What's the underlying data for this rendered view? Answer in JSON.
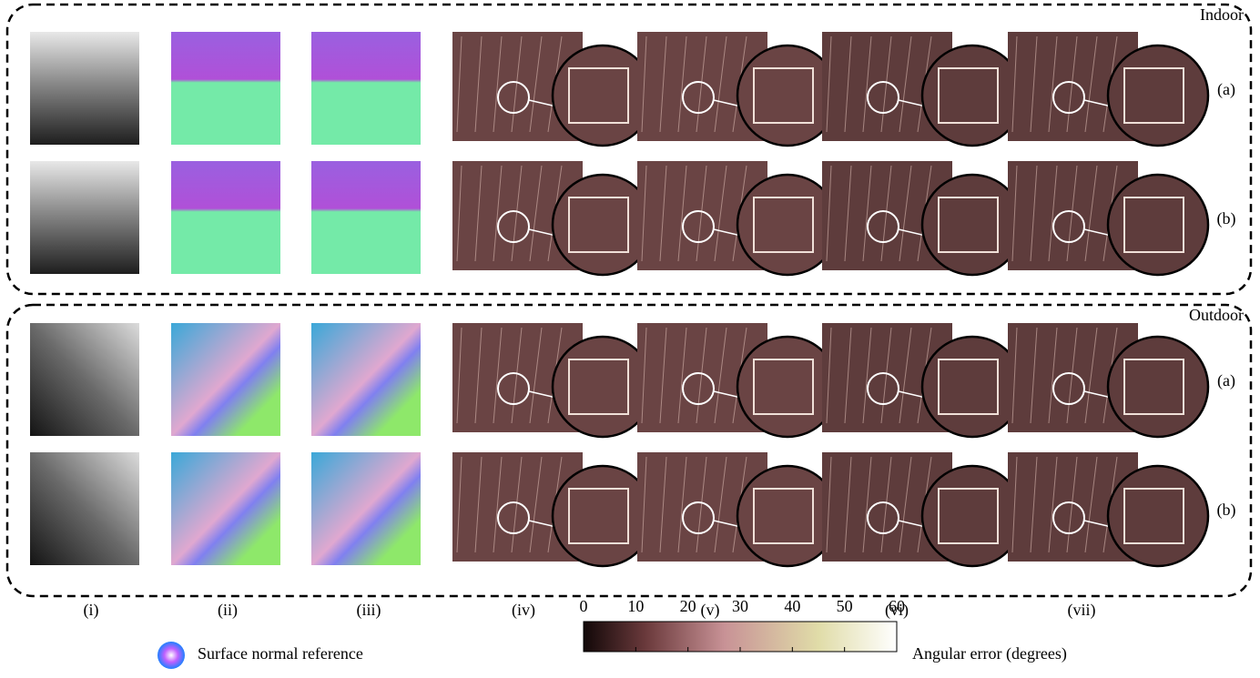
{
  "sections": [
    {
      "label": "Indoor",
      "rows": [
        "(a)",
        "(b)"
      ]
    },
    {
      "label": "Outdoor",
      "rows": [
        "(a)",
        "(b)"
      ]
    }
  ],
  "columns": [
    "(i)",
    "(ii)",
    "(iii)",
    "(iv)",
    "(v)",
    "(vi)",
    "(vii)"
  ],
  "legend": {
    "normal_reference": "Surface normal reference"
  },
  "colorbar": {
    "lim": [
      0,
      60
    ],
    "ticks": [
      0,
      10,
      20,
      30,
      40,
      50,
      60
    ],
    "label": "Angular error (degrees)"
  }
}
